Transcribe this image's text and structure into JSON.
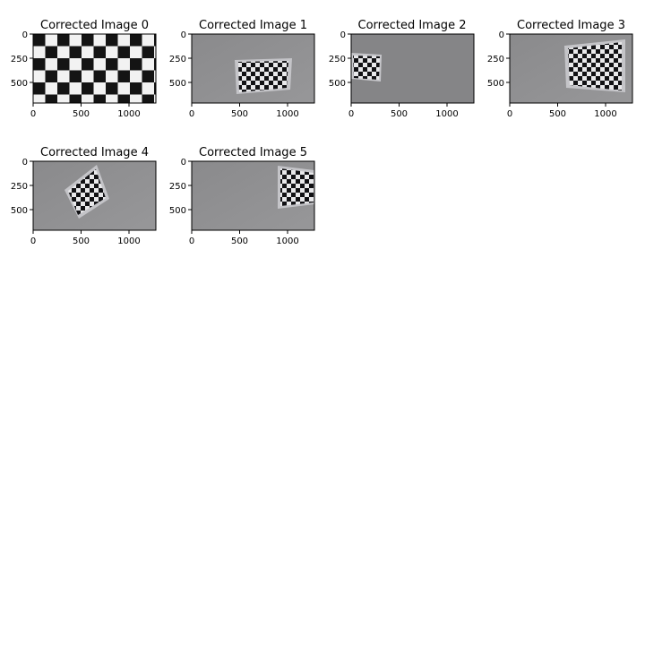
{
  "chart_data": [
    {
      "type": "image",
      "title": "Corrected Image 0",
      "x_ticks": [
        "0",
        "500",
        "1000"
      ],
      "y_ticks": [
        "0",
        "250",
        "500"
      ],
      "xlim": [
        0,
        1280
      ],
      "ylim": [
        720,
        0
      ],
      "content": "full checkerboard"
    },
    {
      "type": "image",
      "title": "Corrected Image 1",
      "x_ticks": [
        "0",
        "500",
        "1000"
      ],
      "y_ticks": [
        "0",
        "250",
        "500"
      ],
      "xlim": [
        0,
        1280
      ],
      "ylim": [
        720,
        0
      ],
      "content": "checkerboard on gray background"
    },
    {
      "type": "image",
      "title": "Corrected Image 2",
      "x_ticks": [
        "0",
        "500",
        "1000"
      ],
      "y_ticks": [
        "0",
        "250",
        "500"
      ],
      "xlim": [
        0,
        1280
      ],
      "ylim": [
        720,
        0
      ],
      "content": "checkerboard on gray background"
    },
    {
      "type": "image",
      "title": "Corrected Image 3",
      "x_ticks": [
        "0",
        "500",
        "1000"
      ],
      "y_ticks": [
        "0",
        "250",
        "500"
      ],
      "xlim": [
        0,
        1280
      ],
      "ylim": [
        720,
        0
      ],
      "content": "checkerboard on gray background"
    },
    {
      "type": "image",
      "title": "Corrected Image 4",
      "x_ticks": [
        "0",
        "500",
        "1000"
      ],
      "y_ticks": [
        "0",
        "250",
        "500"
      ],
      "xlim": [
        0,
        1280
      ],
      "ylim": [
        720,
        0
      ],
      "content": "rotated checkerboard on gray background"
    },
    {
      "type": "image",
      "title": "Corrected Image 5",
      "x_ticks": [
        "0",
        "500",
        "1000"
      ],
      "y_ticks": [
        "0",
        "250",
        "500"
      ],
      "xlim": [
        0,
        1280
      ],
      "ylim": [
        720,
        0
      ],
      "content": "checkerboard on gray background"
    }
  ],
  "colors": {
    "board_dark": "#141414",
    "board_light": "#f2f2f2",
    "background_gray": "#8c8c8e",
    "paper": "#c8c8cc"
  }
}
